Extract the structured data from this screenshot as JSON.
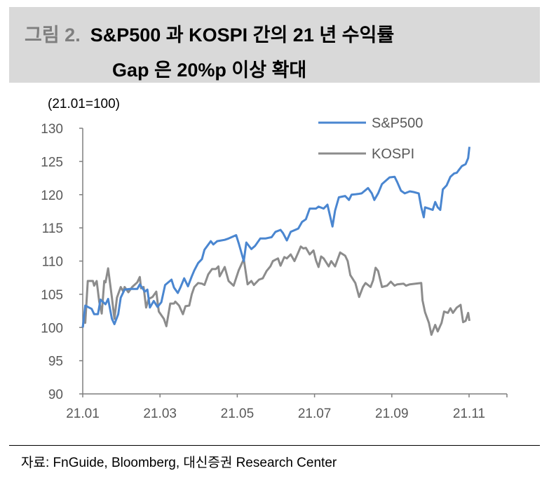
{
  "title": {
    "figure_label": "그림 2.",
    "line1": "S&P500 과 KOSPI 간의 21 년 수익률",
    "line2": "Gap 은 20%p 이상 확대"
  },
  "unit_label": "(21.01=100)",
  "source": "자료: FnGuide, Bloomberg, 대신증권 Research Center",
  "chart_data": {
    "type": "line",
    "title": "",
    "ylabel": "(21.01=100)",
    "ylim": [
      90,
      130
    ],
    "yticks": [
      "130",
      "125",
      "120",
      "115",
      "110",
      "105",
      "100",
      "95",
      "90"
    ],
    "xticks": [
      "21.01",
      "21.03",
      "21.05",
      "21.07",
      "21.09",
      "21.11"
    ],
    "grid": false,
    "legend": "top-right",
    "series": [
      {
        "name": "S&P500",
        "color": "#4a86d0",
        "points": [
          [
            "2021-01-01",
            100
          ],
          [
            "2021-01-03",
            103.3
          ],
          [
            "2021-01-08",
            102.8
          ],
          [
            "2021-01-10",
            102
          ],
          [
            "2021-01-13",
            102
          ],
          [
            "2021-01-15",
            104.2
          ],
          [
            "2021-01-19",
            103.5
          ],
          [
            "2021-01-21",
            104.3
          ],
          [
            "2021-01-24",
            101.3
          ],
          [
            "2021-01-26",
            100.5
          ],
          [
            "2021-01-29",
            102
          ],
          [
            "2021-01-31",
            104.5
          ],
          [
            "2021-02-03",
            105.7
          ],
          [
            "2021-02-07",
            105.8
          ],
          [
            "2021-02-13",
            105.8
          ],
          [
            "2021-02-15",
            106.5
          ],
          [
            "2021-02-19",
            105.4
          ],
          [
            "2021-02-21",
            105.7
          ],
          [
            "2021-02-23",
            103
          ],
          [
            "2021-02-26",
            104
          ],
          [
            "2021-03-01",
            103.1
          ],
          [
            "2021-03-04",
            103.8
          ],
          [
            "2021-03-07",
            106.4
          ],
          [
            "2021-03-12",
            107.2
          ],
          [
            "2021-03-14",
            106
          ],
          [
            "2021-03-17",
            105.2
          ],
          [
            "2021-03-19",
            106
          ],
          [
            "2021-03-22",
            107.4
          ],
          [
            "2021-03-25",
            106.2
          ],
          [
            "2021-03-28",
            107.7
          ],
          [
            "2021-03-30",
            108.6
          ],
          [
            "2021-04-02",
            109.7
          ],
          [
            "2021-04-05",
            110.3
          ],
          [
            "2021-04-07",
            111.7
          ],
          [
            "2021-04-12",
            113
          ],
          [
            "2021-04-14",
            112.5
          ],
          [
            "2021-04-17",
            113
          ],
          [
            "2021-04-23",
            113.2
          ],
          [
            "2021-04-26",
            113.4
          ],
          [
            "2021-05-02",
            113.9
          ],
          [
            "2021-05-04",
            112.7
          ],
          [
            "2021-05-08",
            110
          ],
          [
            "2021-05-10",
            112.8
          ],
          [
            "2021-05-14",
            111.8
          ],
          [
            "2021-05-17",
            112.3
          ],
          [
            "2021-05-21",
            113.4
          ],
          [
            "2021-05-25",
            113.4
          ],
          [
            "2021-05-30",
            113.6
          ],
          [
            "2021-06-02",
            114.4
          ],
          [
            "2021-06-06",
            114.7
          ],
          [
            "2021-06-08",
            114.2
          ],
          [
            "2021-06-11",
            113.1
          ],
          [
            "2021-06-14",
            114.4
          ],
          [
            "2021-06-20",
            114.9
          ],
          [
            "2021-06-23",
            115.9
          ],
          [
            "2021-06-26",
            116.3
          ],
          [
            "2021-06-29",
            117.9
          ],
          [
            "2021-07-04",
            117.9
          ],
          [
            "2021-07-06",
            118.2
          ],
          [
            "2021-07-10",
            117.9
          ],
          [
            "2021-07-13",
            118.5
          ],
          [
            "2021-07-17",
            115.2
          ],
          [
            "2021-07-19",
            117.6
          ],
          [
            "2021-07-22",
            119.6
          ],
          [
            "2021-07-27",
            119.8
          ],
          [
            "2021-07-30",
            119.2
          ],
          [
            "2021-08-01",
            120
          ],
          [
            "2021-08-06",
            120.1
          ],
          [
            "2021-08-09",
            120.2
          ],
          [
            "2021-08-14",
            121
          ],
          [
            "2021-08-17",
            120.2
          ],
          [
            "2021-08-19",
            119.2
          ],
          [
            "2021-08-22",
            120.2
          ],
          [
            "2021-08-25",
            121.6
          ],
          [
            "2021-08-28",
            122.1
          ],
          [
            "2021-08-31",
            122.6
          ],
          [
            "2021-09-04",
            122.7
          ],
          [
            "2021-09-06",
            121.9
          ],
          [
            "2021-09-09",
            120.6
          ],
          [
            "2021-09-12",
            120.2
          ],
          [
            "2021-09-16",
            120.5
          ],
          [
            "2021-09-19",
            120.4
          ],
          [
            "2021-09-23",
            120.2
          ],
          [
            "2021-09-25",
            118.1
          ],
          [
            "2021-09-27",
            116.6
          ],
          [
            "2021-09-28",
            118.1
          ],
          [
            "2021-10-01",
            117.9
          ],
          [
            "2021-10-04",
            117.7
          ],
          [
            "2021-10-06",
            118.9
          ],
          [
            "2021-10-08",
            118.1
          ],
          [
            "2021-10-10",
            117.7
          ],
          [
            "2021-10-12",
            120.8
          ],
          [
            "2021-10-15",
            121.4
          ],
          [
            "2021-10-18",
            122.7
          ],
          [
            "2021-10-21",
            123.2
          ],
          [
            "2021-10-23",
            123.3
          ],
          [
            "2021-10-25",
            123.8
          ],
          [
            "2021-10-27",
            124.3
          ],
          [
            "2021-10-30",
            124.6
          ],
          [
            "2021-11-01",
            125.5
          ],
          [
            "2021-11-02",
            127.2
          ]
        ]
      },
      {
        "name": "KOSPI",
        "color": "#8c8c8c",
        "points": [
          [
            "2021-01-01",
            100
          ],
          [
            "2021-01-02",
            101.3
          ],
          [
            "2021-01-03",
            100.7
          ],
          [
            "2021-01-05",
            107
          ],
          [
            "2021-01-09",
            107
          ],
          [
            "2021-01-10",
            106.3
          ],
          [
            "2021-01-12",
            107
          ],
          [
            "2021-01-14",
            103.9
          ],
          [
            "2021-01-16",
            102.1
          ],
          [
            "2021-01-18",
            107
          ],
          [
            "2021-01-19",
            106.8
          ],
          [
            "2021-01-21",
            108.9
          ],
          [
            "2021-01-24",
            104.5
          ],
          [
            "2021-01-26",
            101.3
          ],
          [
            "2021-01-28",
            104.5
          ],
          [
            "2021-01-31",
            106.1
          ],
          [
            "2021-02-02",
            105.4
          ],
          [
            "2021-02-03",
            106.1
          ],
          [
            "2021-02-06",
            105.3
          ],
          [
            "2021-02-09",
            106.1
          ],
          [
            "2021-02-13",
            106.8
          ],
          [
            "2021-02-15",
            107.6
          ],
          [
            "2021-02-16",
            105.9
          ],
          [
            "2021-02-18",
            106.1
          ],
          [
            "2021-02-20",
            103
          ],
          [
            "2021-02-22",
            104.3
          ],
          [
            "2021-02-25",
            104.6
          ],
          [
            "2021-02-28",
            105.4
          ],
          [
            "2021-03-02",
            102.4
          ],
          [
            "2021-03-06",
            101.3
          ],
          [
            "2021-03-08",
            100.2
          ],
          [
            "2021-03-11",
            103.6
          ],
          [
            "2021-03-14",
            103.6
          ],
          [
            "2021-03-15",
            103.9
          ],
          [
            "2021-03-18",
            103.3
          ],
          [
            "2021-03-21",
            102
          ],
          [
            "2021-03-23",
            103.2
          ],
          [
            "2021-03-26",
            103.3
          ],
          [
            "2021-03-28",
            105
          ],
          [
            "2021-03-30",
            106.1
          ],
          [
            "2021-04-02",
            106.7
          ],
          [
            "2021-04-05",
            106.6
          ],
          [
            "2021-04-07",
            106.4
          ],
          [
            "2021-04-10",
            108
          ],
          [
            "2021-04-13",
            108.8
          ],
          [
            "2021-04-16",
            108.8
          ],
          [
            "2021-04-18",
            109.2
          ],
          [
            "2021-04-19",
            107.7
          ],
          [
            "2021-04-23",
            109.1
          ],
          [
            "2021-04-26",
            107
          ],
          [
            "2021-04-30",
            106.3
          ],
          [
            "2021-05-04",
            108.6
          ],
          [
            "2021-05-08",
            110.3
          ],
          [
            "2021-05-11",
            106.5
          ],
          [
            "2021-05-14",
            107
          ],
          [
            "2021-05-16",
            106.4
          ],
          [
            "2021-05-20",
            107.2
          ],
          [
            "2021-05-23",
            107.4
          ],
          [
            "2021-05-26",
            108.5
          ],
          [
            "2021-05-29",
            109.2
          ],
          [
            "2021-05-31",
            110
          ],
          [
            "2021-06-04",
            110.4
          ],
          [
            "2021-06-06",
            109.3
          ],
          [
            "2021-06-09",
            110.6
          ],
          [
            "2021-06-11",
            110.4
          ],
          [
            "2021-06-14",
            111
          ],
          [
            "2021-06-17",
            110
          ],
          [
            "2021-06-20",
            111.3
          ],
          [
            "2021-06-22",
            112.2
          ],
          [
            "2021-06-24",
            111.9
          ],
          [
            "2021-06-26",
            112
          ],
          [
            "2021-06-29",
            111
          ],
          [
            "2021-07-02",
            111.6
          ],
          [
            "2021-07-04",
            110.1
          ],
          [
            "2021-07-06",
            109.1
          ],
          [
            "2021-07-08",
            110.7
          ],
          [
            "2021-07-10",
            110.4
          ],
          [
            "2021-07-14",
            109.2
          ],
          [
            "2021-07-16",
            110
          ],
          [
            "2021-07-19",
            109.2
          ],
          [
            "2021-07-23",
            111.3
          ],
          [
            "2021-07-27",
            110.8
          ],
          [
            "2021-07-29",
            110
          ],
          [
            "2021-07-31",
            107.9
          ],
          [
            "2021-08-04",
            106.7
          ],
          [
            "2021-08-07",
            104.6
          ],
          [
            "2021-08-10",
            106.1
          ],
          [
            "2021-08-12",
            106.7
          ],
          [
            "2021-08-16",
            106.1
          ],
          [
            "2021-08-18",
            107.1
          ],
          [
            "2021-08-20",
            109
          ],
          [
            "2021-08-22",
            108.5
          ],
          [
            "2021-08-25",
            106.1
          ],
          [
            "2021-08-29",
            106.3
          ],
          [
            "2021-09-01",
            106.9
          ],
          [
            "2021-09-04",
            106.3
          ],
          [
            "2021-09-06",
            106.5
          ],
          [
            "2021-09-11",
            106.6
          ],
          [
            "2021-09-13",
            106.3
          ],
          [
            "2021-09-16",
            106.5
          ],
          [
            "2021-09-25",
            106.7
          ],
          [
            "2021-09-26",
            104.1
          ],
          [
            "2021-09-28",
            102.3
          ],
          [
            "2021-10-01",
            100.7
          ],
          [
            "2021-10-03",
            98.9
          ],
          [
            "2021-10-06",
            100.4
          ],
          [
            "2021-10-08",
            99.4
          ],
          [
            "2021-10-11",
            100.7
          ],
          [
            "2021-10-13",
            102.4
          ],
          [
            "2021-10-16",
            102.2
          ],
          [
            "2021-10-18",
            102.9
          ],
          [
            "2021-10-20",
            102.2
          ],
          [
            "2021-10-23",
            103
          ],
          [
            "2021-10-26",
            103.4
          ],
          [
            "2021-10-28",
            100.8
          ],
          [
            "2021-10-30",
            101
          ],
          [
            "2021-11-01",
            102.2
          ],
          [
            "2021-11-02",
            101
          ]
        ]
      }
    ]
  }
}
